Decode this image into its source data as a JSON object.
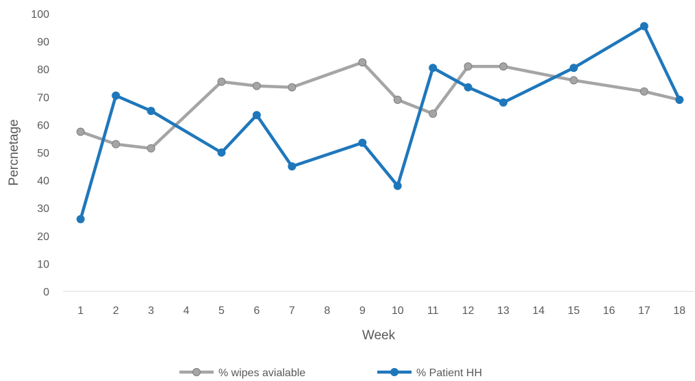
{
  "chart_data": {
    "type": "line",
    "x": [
      "1",
      "2",
      "3",
      "4",
      "5",
      "6",
      "7",
      "8",
      "9",
      "10",
      "11",
      "12",
      "13",
      "14",
      "15",
      "16",
      "17",
      "18"
    ],
    "xlabel": "Week",
    "ylabel": "Percnetage",
    "ylim": [
      0,
      100
    ],
    "yticks": [
      0,
      10,
      20,
      30,
      40,
      50,
      60,
      70,
      80,
      90,
      100
    ],
    "grid": false,
    "legend": "bottom",
    "series": [
      {
        "name": "% wipes avialable",
        "color": "#A5A5A5",
        "marker_fill": "#A5A5A5",
        "values": [
          57.5,
          53,
          51.5,
          null,
          75.5,
          74,
          73.5,
          null,
          82.5,
          69,
          64,
          81,
          81,
          null,
          76,
          null,
          72,
          69
        ]
      },
      {
        "name": "% Patient HH",
        "color": "#1F77BB",
        "marker_fill": "#1F77BB",
        "values": [
          26,
          70.5,
          65,
          null,
          50,
          63.5,
          45,
          null,
          53.5,
          38,
          80.5,
          73.5,
          68,
          null,
          80.5,
          null,
          95.5,
          69
        ]
      }
    ]
  }
}
